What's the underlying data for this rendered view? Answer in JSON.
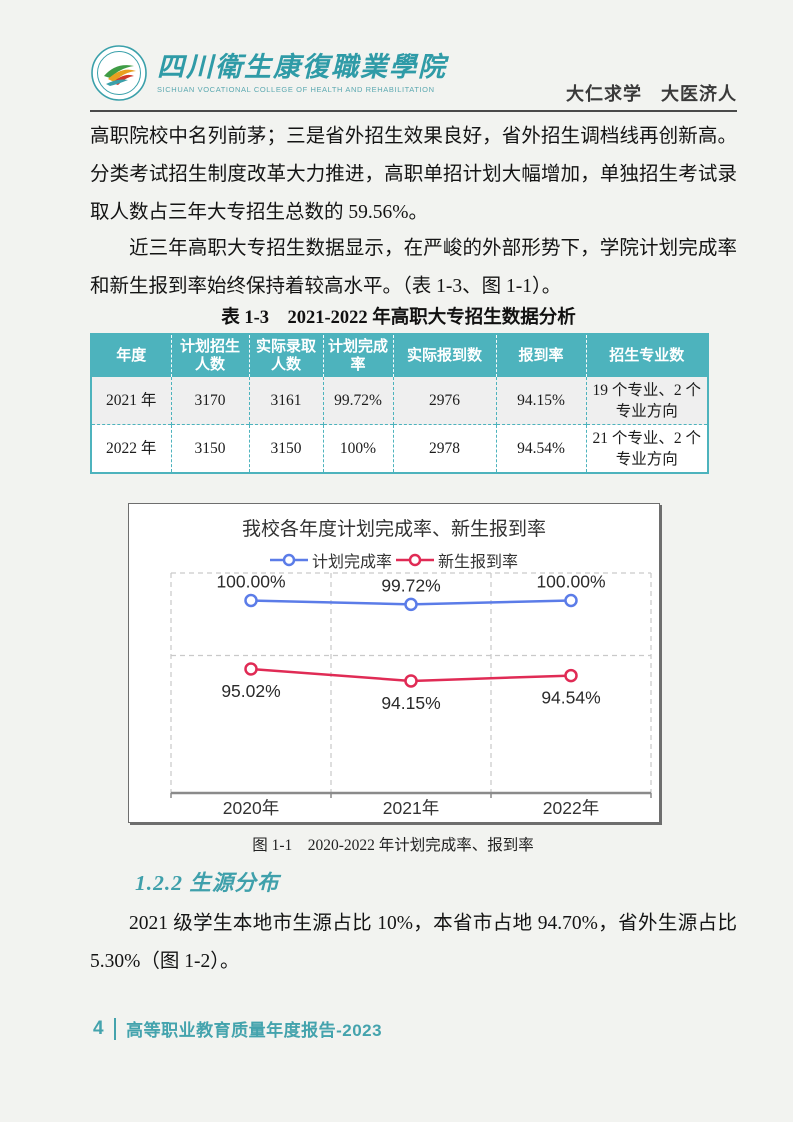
{
  "colors": {
    "accent_teal": "#4db3bd",
    "heading_teal": "#3fa0ab",
    "footer_teal": "#44a3ad",
    "series_blue": "#5b7ce8",
    "series_red": "#e02b55",
    "page_background": "#f2f3f0"
  },
  "header": {
    "college_name_zh": "四川衛生康復職業學院",
    "college_name_en": "SICHUAN VOCATIONAL COLLEGE OF HEALTH AND REHABILITATION",
    "motto": "大仁求学　大医济人"
  },
  "paragraphs": {
    "p1": "高职院校中名列前茅；三是省外招生效果良好，省外招生调档线再创新高。分类考试招生制度改革大力推进，高职单招计划大幅增加，单独招生考试录取人数占三年大专招生总数的 59.56%。",
    "p2": "近三年高职大专招生数据显示，在严峻的外部形势下，学院计划完成率和新生报到率始终保持着较高水平。（表 1-3、图 1-1）。",
    "p3": "2021 级学生本地市生源占比 10%，本省市占地 94.70%，省外生源占比 5.30%（图 1-2）。"
  },
  "table": {
    "title": "表 1-3　2021-2022 年高职大专招生数据分析",
    "headers": [
      "年度",
      "计划招生人数",
      "实际录取人数",
      "计划完成率",
      "实际报到数",
      "报到率",
      "招生专业数"
    ],
    "rows": [
      [
        "2021 年",
        "3170",
        "3161",
        "99.72%",
        "2976",
        "94.15%",
        "19 个专业、2 个专业方向"
      ],
      [
        "2022 年",
        "3150",
        "3150",
        "100%",
        "2978",
        "94.54%",
        "21 个专业、2 个专业方向"
      ]
    ]
  },
  "chart_data": {
    "type": "line",
    "title": "我校各年度计划完成率、新生报到率",
    "categories": [
      "2020年",
      "2021年",
      "2022年"
    ],
    "series": [
      {
        "name": "计划完成率",
        "color": "#5b7ce8",
        "values": [
          100.0,
          99.72,
          100.0
        ],
        "labels": [
          "100.00%",
          "99.72%",
          "100.00%"
        ]
      },
      {
        "name": "新生报到率",
        "color": "#e02b55",
        "values": [
          95.02,
          94.15,
          94.54
        ],
        "labels": [
          "95.02%",
          "94.15%",
          "94.54%"
        ]
      }
    ],
    "ylim": [
      86,
      102
    ],
    "y_gridlines": [
      96
    ],
    "grid": "dashed",
    "legend_position": "top",
    "xlabel": "",
    "ylabel": ""
  },
  "figure": {
    "caption": "图 1-1　2020-2022 年计划完成率、报到率"
  },
  "section": {
    "heading": "1.2.2  生源分布"
  },
  "footer": {
    "page_number": "4",
    "text": "高等职业教育质量年度报告-2023"
  }
}
